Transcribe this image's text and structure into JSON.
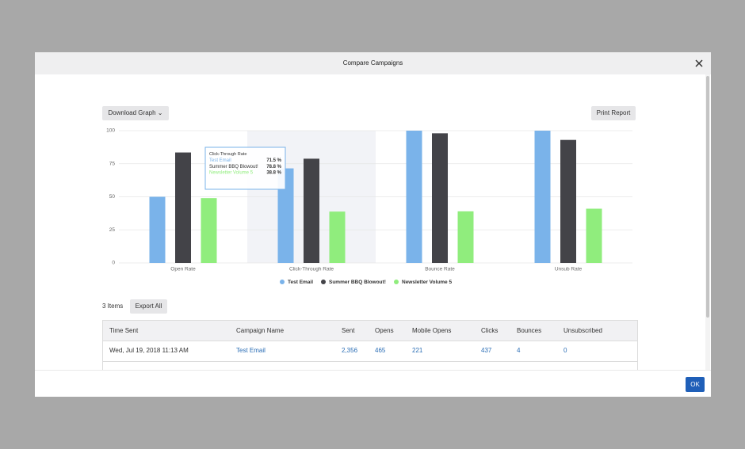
{
  "dialog": {
    "title": "Compare Campaigns",
    "ok": "OK"
  },
  "toolbar": {
    "download": "Download Graph",
    "print": "Print Report"
  },
  "chart_data": {
    "type": "bar",
    "categories": [
      "Open Rate",
      "Click-Through Rate",
      "Bounce Rate",
      "Unsub Rate"
    ],
    "series": [
      {
        "name": "Test Email",
        "color": "#7ab3ea",
        "values": [
          50,
          71.5,
          100,
          100
        ],
        "value_labels": [
          null,
          "71.5 %",
          null,
          null
        ]
      },
      {
        "name": "Summer BBQ Blowout!",
        "color": "#434348",
        "values": [
          83.5,
          78.8,
          98,
          93
        ],
        "value_labels": [
          null,
          "78.8 %",
          null,
          null
        ]
      },
      {
        "name": "Newsletter Volume 5",
        "color": "#90ed7d",
        "values": [
          49,
          38.8,
          39,
          41
        ],
        "value_labels": [
          null,
          "38.8 %",
          null,
          null
        ]
      }
    ],
    "ylim": [
      0,
      100
    ],
    "yticks": [
      0,
      25,
      50,
      75,
      100
    ],
    "grid": true,
    "legend": "bottom"
  },
  "list": {
    "count": "3 Items",
    "export": "Export All"
  },
  "table": {
    "columns": [
      "Time Sent",
      "Campaign Name",
      "Sent",
      "Opens",
      "Mobile Opens",
      "Clicks",
      "Bounces",
      "Unsubscribed"
    ],
    "rows": [
      [
        "Wed, Jul 19, 2018 11:13 AM",
        "Test Email",
        "2,356",
        "465",
        "221",
        "437",
        "4",
        "0"
      ]
    ]
  }
}
